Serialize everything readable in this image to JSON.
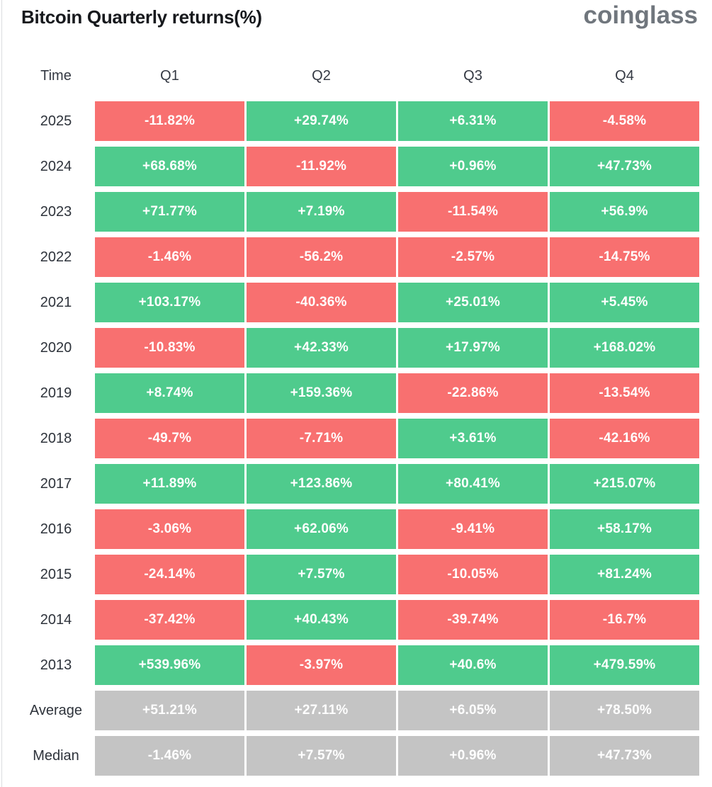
{
  "page": {
    "title": "Bitcoin Quarterly returns(%)",
    "brand": "coinglass"
  },
  "colors": {
    "positive": "#4FCB8D",
    "negative": "#F87070",
    "neutral": "#C4C4C4",
    "title_text": "#17191d",
    "brand_text": "#70767d",
    "label_text": "#2e333b",
    "cell_text": "#ffffff"
  },
  "table": {
    "columns": [
      "Time",
      "Q1",
      "Q2",
      "Q3",
      "Q4"
    ],
    "rows": [
      {
        "label": "2025",
        "kind": "year",
        "values": [
          "-11.82%",
          "+29.74%",
          "+6.31%",
          "-4.58%"
        ]
      },
      {
        "label": "2024",
        "kind": "year",
        "values": [
          "+68.68%",
          "-11.92%",
          "+0.96%",
          "+47.73%"
        ]
      },
      {
        "label": "2023",
        "kind": "year",
        "values": [
          "+71.77%",
          "+7.19%",
          "-11.54%",
          "+56.9%"
        ]
      },
      {
        "label": "2022",
        "kind": "year",
        "values": [
          "-1.46%",
          "-56.2%",
          "-2.57%",
          "-14.75%"
        ]
      },
      {
        "label": "2021",
        "kind": "year",
        "values": [
          "+103.17%",
          "-40.36%",
          "+25.01%",
          "+5.45%"
        ]
      },
      {
        "label": "2020",
        "kind": "year",
        "values": [
          "-10.83%",
          "+42.33%",
          "+17.97%",
          "+168.02%"
        ]
      },
      {
        "label": "2019",
        "kind": "year",
        "values": [
          "+8.74%",
          "+159.36%",
          "-22.86%",
          "-13.54%"
        ]
      },
      {
        "label": "2018",
        "kind": "year",
        "values": [
          "-49.7%",
          "-7.71%",
          "+3.61%",
          "-42.16%"
        ]
      },
      {
        "label": "2017",
        "kind": "year",
        "values": [
          "+11.89%",
          "+123.86%",
          "+80.41%",
          "+215.07%"
        ]
      },
      {
        "label": "2016",
        "kind": "year",
        "values": [
          "-3.06%",
          "+62.06%",
          "-9.41%",
          "+58.17%"
        ]
      },
      {
        "label": "2015",
        "kind": "year",
        "values": [
          "-24.14%",
          "+7.57%",
          "-10.05%",
          "+81.24%"
        ]
      },
      {
        "label": "2014",
        "kind": "year",
        "values": [
          "-37.42%",
          "+40.43%",
          "-39.74%",
          "-16.7%"
        ]
      },
      {
        "label": "2013",
        "kind": "year",
        "values": [
          "+539.96%",
          "-3.97%",
          "+40.6%",
          "+479.59%"
        ]
      },
      {
        "label": "Average",
        "kind": "summary",
        "values": [
          "+51.21%",
          "+27.11%",
          "+6.05%",
          "+78.50%"
        ]
      },
      {
        "label": "Median",
        "kind": "summary",
        "values": [
          "-1.46%",
          "+7.57%",
          "+0.96%",
          "+47.73%"
        ]
      }
    ]
  },
  "chart_data": {
    "type": "heatmap",
    "title": "Bitcoin Quarterly returns(%)",
    "columns": [
      "Q1",
      "Q2",
      "Q3",
      "Q4"
    ],
    "row_labels": [
      "2025",
      "2024",
      "2023",
      "2022",
      "2021",
      "2020",
      "2019",
      "2018",
      "2017",
      "2016",
      "2015",
      "2014",
      "2013",
      "Average",
      "Median"
    ],
    "series": [
      {
        "name": "2025",
        "values": [
          -11.82,
          29.74,
          6.31,
          -4.58
        ]
      },
      {
        "name": "2024",
        "values": [
          68.68,
          -11.92,
          0.96,
          47.73
        ]
      },
      {
        "name": "2023",
        "values": [
          71.77,
          7.19,
          -11.54,
          56.9
        ]
      },
      {
        "name": "2022",
        "values": [
          -1.46,
          -56.2,
          -2.57,
          -14.75
        ]
      },
      {
        "name": "2021",
        "values": [
          103.17,
          -40.36,
          25.01,
          5.45
        ]
      },
      {
        "name": "2020",
        "values": [
          -10.83,
          42.33,
          17.97,
          168.02
        ]
      },
      {
        "name": "2019",
        "values": [
          8.74,
          159.36,
          -22.86,
          -13.54
        ]
      },
      {
        "name": "2018",
        "values": [
          -49.7,
          -7.71,
          3.61,
          -42.16
        ]
      },
      {
        "name": "2017",
        "values": [
          11.89,
          123.86,
          80.41,
          215.07
        ]
      },
      {
        "name": "2016",
        "values": [
          -3.06,
          62.06,
          -9.41,
          58.17
        ]
      },
      {
        "name": "2015",
        "values": [
          -24.14,
          7.57,
          -10.05,
          81.24
        ]
      },
      {
        "name": "2014",
        "values": [
          -37.42,
          40.43,
          -39.74,
          -16.7
        ]
      },
      {
        "name": "2013",
        "values": [
          539.96,
          -3.97,
          40.6,
          479.59
        ]
      },
      {
        "name": "Average",
        "values": [
          51.21,
          27.11,
          6.05,
          78.5
        ]
      },
      {
        "name": "Median",
        "values": [
          -1.46,
          7.57,
          0.96,
          47.73
        ]
      }
    ],
    "legend_position": "none",
    "grid": false,
    "color_coding": "green = positive return, red = negative return, gray = Average/Median summary rows"
  }
}
